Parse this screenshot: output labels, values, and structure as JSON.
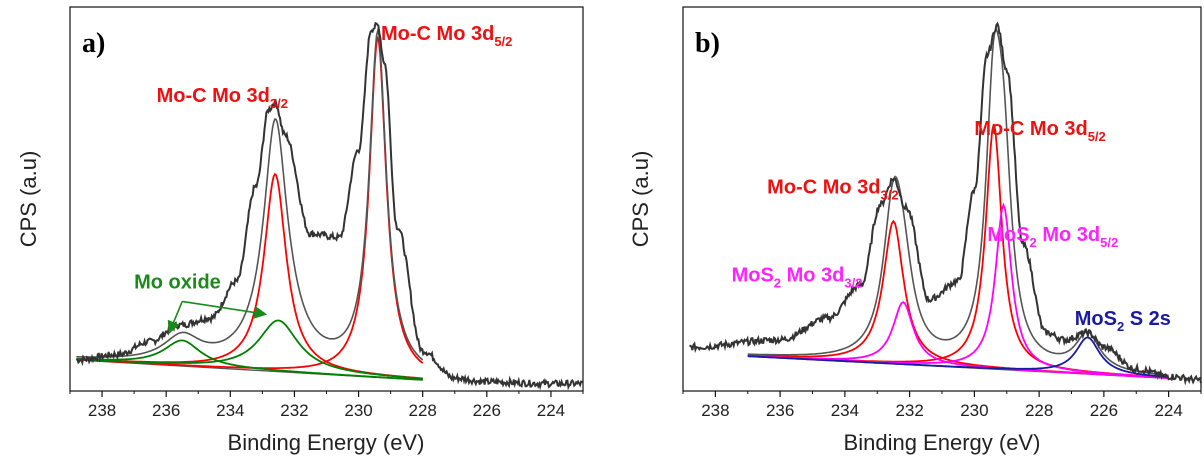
{
  "chart_data": [
    {
      "type": "line",
      "panel_label": "a)",
      "xlabel": "Binding Energy (eV)",
      "ylabel": "CPS (a.u)",
      "xlim": [
        239,
        223
      ],
      "x_reversed": true,
      "ylim": [
        0,
        1.05
      ],
      "y_ticks_shown": false,
      "xticks": [
        238,
        236,
        234,
        232,
        230,
        228,
        226,
        224
      ],
      "series": [
        {
          "name": "",
          "color": "#333333",
          "role": "measured",
          "x": [
            238.8,
            237.5,
            236.5,
            235.6,
            234.6,
            233.8,
            233.2,
            232.8,
            232.6,
            232.3,
            231.5,
            230.6,
            230.0,
            229.6,
            229.4,
            229.2,
            228.8,
            228.0,
            227.0,
            226.0,
            224.0,
            223.0
          ],
          "y": [
            0.085,
            0.1,
            0.135,
            0.18,
            0.2,
            0.3,
            0.56,
            0.77,
            0.79,
            0.7,
            0.43,
            0.42,
            0.66,
            0.99,
            1.0,
            0.9,
            0.45,
            0.11,
            0.035,
            0.025,
            0.02,
            0.02
          ]
        },
        {
          "name": "",
          "color": "#ff0000",
          "role": "fit-component",
          "center": 232.6,
          "amplitude": 0.54,
          "width": 0.42
        },
        {
          "name": "",
          "color": "#ff0000",
          "role": "fit-component",
          "center": 229.4,
          "amplitude": 0.93,
          "width": 0.32
        },
        {
          "name": "",
          "color": "#008000",
          "role": "fit-component",
          "center": 235.5,
          "amplitude": 0.07,
          "width": 0.7
        },
        {
          "name": "",
          "color": "#008000",
          "role": "fit-component",
          "center": 232.5,
          "amplitude": 0.14,
          "width": 0.75
        },
        {
          "name": "",
          "color": "#555555",
          "role": "background",
          "x": [
            238.8,
            228.0
          ],
          "y": [
            0.085,
            0.03
          ]
        }
      ],
      "annotations": [
        {
          "text": "Mo-C Mo 3d",
          "sub": "5/2",
          "color": "#ee1111",
          "x": 229.3,
          "y": 0.96
        },
        {
          "text": "Mo-C Mo 3d",
          "sub": "3/2",
          "color": "#ee1111",
          "x": 236.3,
          "y": 0.79
        },
        {
          "text": "Mo oxide",
          "sub": "",
          "color": "#1a8a1a",
          "x": 237.0,
          "y": 0.28
        }
      ]
    },
    {
      "type": "line",
      "panel_label": "b)",
      "xlabel": "Binding Energy (eV)",
      "ylabel": "CPS (a.u)",
      "xlim": [
        239,
        223
      ],
      "x_reversed": true,
      "ylim": [
        0,
        1.05
      ],
      "y_ticks_shown": false,
      "xticks": [
        238,
        236,
        234,
        232,
        230,
        228,
        226,
        224
      ],
      "series": [
        {
          "name": "",
          "color": "#333333",
          "role": "measured",
          "x": [
            238.8,
            236.0,
            234.5,
            233.5,
            232.9,
            232.5,
            232.1,
            231.4,
            230.5,
            230.0,
            229.6,
            229.3,
            229.0,
            228.5,
            227.8,
            227.2,
            226.5,
            226.0,
            225.0,
            224.0,
            223.0
          ],
          "y": [
            0.12,
            0.14,
            0.2,
            0.29,
            0.51,
            0.58,
            0.5,
            0.25,
            0.3,
            0.55,
            0.92,
            1.0,
            0.88,
            0.4,
            0.16,
            0.14,
            0.16,
            0.12,
            0.06,
            0.04,
            0.03
          ]
        },
        {
          "name": "",
          "color": "#ff0000",
          "role": "fit-component",
          "center": 232.5,
          "amplitude": 0.39,
          "width": 0.38
        },
        {
          "name": "",
          "color": "#ff0000",
          "role": "fit-component",
          "center": 229.4,
          "amplitude": 0.67,
          "width": 0.3
        },
        {
          "name": "",
          "color": "#ff00ff",
          "role": "fit-component",
          "center": 232.2,
          "amplitude": 0.17,
          "width": 0.38
        },
        {
          "name": "",
          "color": "#ff00ff",
          "role": "fit-component",
          "center": 229.1,
          "amplitude": 0.45,
          "width": 0.3
        },
        {
          "name": "",
          "color": "#1a1aa0",
          "role": "fit-component",
          "center": 226.5,
          "amplitude": 0.1,
          "width": 0.45
        },
        {
          "name": "",
          "color": "#555555",
          "role": "background",
          "x": [
            237.0,
            224.0
          ],
          "y": [
            0.095,
            0.035
          ]
        }
      ],
      "annotations": [
        {
          "text": "Mo-C Mo 3d",
          "sub": "5/2",
          "color": "#ee1111",
          "x": 230.0,
          "y": 0.7
        },
        {
          "text": "Mo-C Mo 3d",
          "sub": "3/2",
          "color": "#ee1111",
          "x": 236.4,
          "y": 0.54
        },
        {
          "text": "MoS",
          "sub": "2",
          "tail": " Mo 3d",
          "tail_sub": "3/2",
          "color": "#ff22ff",
          "x": 237.5,
          "y": 0.3
        },
        {
          "text": "MoS",
          "sub": "2",
          "tail": " Mo 3d",
          "tail_sub": "5/2",
          "color": "#ff22ff",
          "x": 229.6,
          "y": 0.41
        },
        {
          "text": "MoS",
          "sub": "2",
          "tail": " S 2s",
          "tail_sub": "",
          "color": "#1a1aa0",
          "x": 226.9,
          "y": 0.18
        }
      ]
    }
  ]
}
